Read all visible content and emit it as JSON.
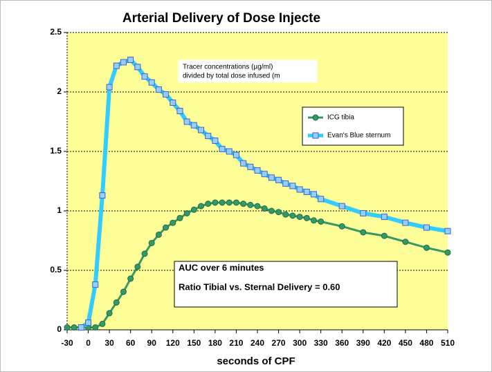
{
  "chart_data": {
    "type": "line",
    "title": "Arterial Delivery of Dose Injecte",
    "x_label": "seconds of CPF",
    "annotations": [
      [
        "Tracer concentrations (µg/ml)",
        "divided by total dose infused (m"
      ],
      [
        "AUC over 6 minutes",
        "Ratio Tibial vs. Sternal Delivery = 0.60"
      ]
    ],
    "xlim": [
      -30,
      510
    ],
    "xticks": [
      -30,
      0,
      30,
      60,
      90,
      120,
      150,
      180,
      210,
      240,
      270,
      300,
      330,
      360,
      390,
      420,
      450,
      480,
      510
    ],
    "ylim": [
      0,
      2.5
    ],
    "yticks": [
      0,
      0.5,
      1,
      1.5,
      2,
      2.5
    ],
    "grid": true,
    "series": [
      {
        "name": "ICG tibia",
        "color": "#339966",
        "marker": "circle",
        "x": [
          -30,
          -20,
          -10,
          0,
          10,
          20,
          30,
          40,
          50,
          60,
          70,
          80,
          90,
          100,
          110,
          120,
          130,
          140,
          150,
          160,
          170,
          180,
          190,
          200,
          210,
          220,
          230,
          240,
          250,
          260,
          270,
          280,
          290,
          300,
          310,
          320,
          330,
          360,
          390,
          420,
          450,
          480,
          510
        ],
        "values": [
          0.02,
          0.02,
          0.02,
          0.02,
          0.02,
          0.05,
          0.14,
          0.23,
          0.32,
          0.43,
          0.53,
          0.64,
          0.73,
          0.8,
          0.86,
          0.9,
          0.94,
          0.98,
          1.01,
          1.04,
          1.06,
          1.07,
          1.07,
          1.07,
          1.07,
          1.06,
          1.05,
          1.04,
          1.02,
          1.0,
          0.99,
          0.97,
          0.96,
          0.95,
          0.94,
          0.92,
          0.91,
          0.87,
          0.82,
          0.79,
          0.74,
          0.69,
          0.65
        ]
      },
      {
        "name": "Evan's Blue sternum",
        "color": "#33ccff",
        "marker": "square",
        "x": [
          -10,
          0,
          10,
          20,
          30,
          40,
          50,
          60,
          70,
          80,
          90,
          100,
          110,
          120,
          130,
          140,
          150,
          160,
          170,
          180,
          190,
          200,
          210,
          220,
          230,
          240,
          250,
          260,
          270,
          280,
          290,
          300,
          310,
          320,
          330,
          360,
          390,
          420,
          450,
          480,
          510
        ],
        "values": [
          0.02,
          0.06,
          0.38,
          1.13,
          2.04,
          2.22,
          2.25,
          2.27,
          2.21,
          2.13,
          2.08,
          2.02,
          1.98,
          1.91,
          1.84,
          1.75,
          1.72,
          1.68,
          1.63,
          1.59,
          1.52,
          1.5,
          1.47,
          1.4,
          1.37,
          1.34,
          1.31,
          1.28,
          1.26,
          1.23,
          1.21,
          1.18,
          1.16,
          1.14,
          1.1,
          1.04,
          0.98,
          0.95,
          0.9,
          0.86,
          0.83
        ]
      }
    ]
  }
}
